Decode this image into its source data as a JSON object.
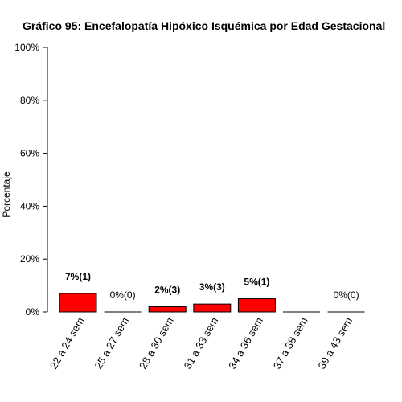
{
  "chart_data": {
    "type": "bar",
    "title": "Gráfico 95: Encefalopatía Hipóxico Isquémica por  Edad Gestacional",
    "xlabel": "",
    "ylabel": "Porcentaje",
    "ylim": [
      0,
      100
    ],
    "yticks": [
      "0%",
      "20%",
      "40%",
      "60%",
      "80%",
      "100%"
    ],
    "ytick_values": [
      0,
      20,
      40,
      60,
      80,
      100
    ],
    "categories": [
      "22 a 24 sem",
      "25 a 27 sem",
      "28 a 30 sem",
      "31 a 33 sem",
      "34 a 36 sem",
      "37 a 38 sem",
      "39 a 43 sem"
    ],
    "values": [
      7,
      0,
      2,
      3,
      5,
      0,
      0
    ],
    "data_labels": [
      "7%(1)",
      "0%(0)",
      "2%(3)",
      "3%(3)",
      "5%(1)",
      "",
      "0%(0)"
    ],
    "data_label_bold": [
      true,
      false,
      true,
      true,
      true,
      false,
      false
    ],
    "bar_color": "#ff0000",
    "grid": false,
    "legend": "none"
  }
}
